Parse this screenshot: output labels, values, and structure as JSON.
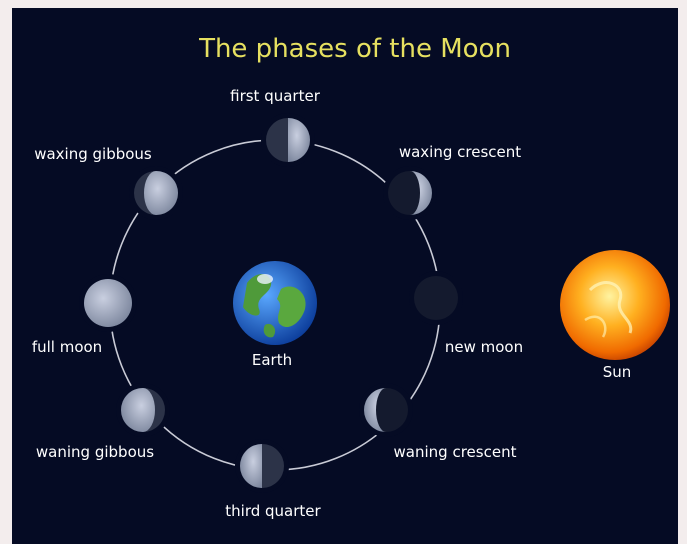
{
  "title": "The phases of the Moon",
  "phases": [
    {
      "label": "first quarter"
    },
    {
      "label": "waxing crescent"
    },
    {
      "label": "new moon"
    },
    {
      "label": "waning crescent"
    },
    {
      "label": "third quarter"
    },
    {
      "label": "waning gibbous"
    },
    {
      "label": "full moon"
    },
    {
      "label": "waxing gibbous"
    }
  ],
  "earth": {
    "label": "Earth"
  },
  "sun": {
    "label": "Sun"
  }
}
